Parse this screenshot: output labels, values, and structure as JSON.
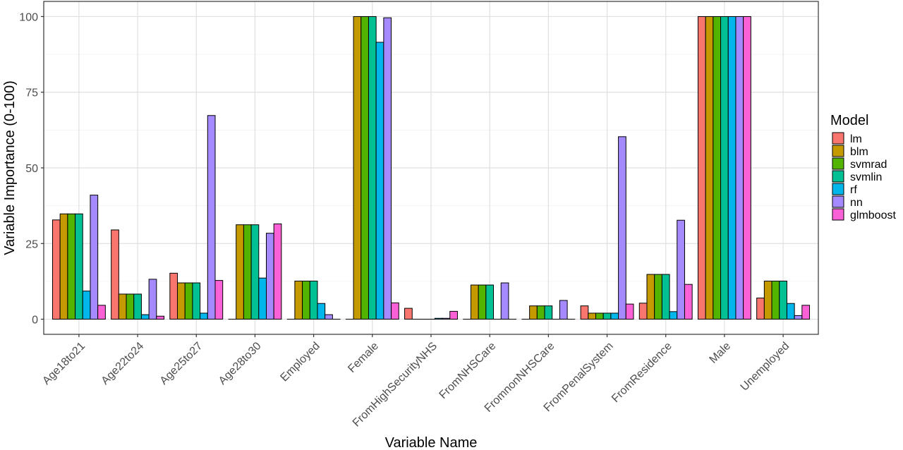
{
  "chart_data": {
    "type": "bar",
    "title": "",
    "xlabel": "Variable Name",
    "ylabel": "Variable Importance (0-100)",
    "ylim": [
      -5,
      105
    ],
    "yticks": [
      0,
      25,
      50,
      75,
      100
    ],
    "grid": true,
    "legend_title": "Model",
    "legend_position": "right",
    "categories": [
      "Age18to21",
      "Age22to24",
      "Age25to27",
      "Age28to30",
      "Employed",
      "Female",
      "FromHighSecurityNHS",
      "FromNHSCare",
      "FromnonNHSCare",
      "FromPenalSystem",
      "FromResidence",
      "Male",
      "Unemployed"
    ],
    "series": [
      {
        "name": "lm",
        "color": "#F8766D",
        "values": [
          32.8,
          29.5,
          15.2,
          0,
          0,
          0,
          3.6,
          0,
          0,
          4.4,
          5.3,
          100,
          7.0
        ]
      },
      {
        "name": "blm",
        "color": "#C49A00",
        "values": [
          34.8,
          8.3,
          12.0,
          31.2,
          12.6,
          100,
          0,
          11.3,
          4.4,
          2.0,
          14.8,
          100,
          12.6
        ]
      },
      {
        "name": "svmrad",
        "color": "#53B400",
        "values": [
          34.8,
          8.3,
          12.0,
          31.2,
          12.6,
          100,
          0,
          11.3,
          4.4,
          2.0,
          14.8,
          100,
          12.6
        ]
      },
      {
        "name": "svmlin",
        "color": "#00C094",
        "values": [
          34.8,
          8.3,
          12.0,
          31.2,
          12.6,
          100,
          0,
          11.3,
          4.4,
          2.0,
          14.8,
          100,
          12.6
        ]
      },
      {
        "name": "rf",
        "color": "#00B6EB",
        "values": [
          9.3,
          1.5,
          2.0,
          13.6,
          5.2,
          91.5,
          0.3,
          0,
          0,
          2.0,
          2.5,
          100,
          5.2
        ]
      },
      {
        "name": "nn",
        "color": "#A58AFF",
        "values": [
          41.0,
          13.2,
          67.3,
          28.4,
          1.5,
          99.6,
          0.3,
          12.0,
          6.2,
          60.3,
          32.7,
          100,
          1.2
        ]
      },
      {
        "name": "glmboost",
        "color": "#FB61D7",
        "values": [
          4.6,
          1.0,
          12.8,
          31.5,
          0,
          5.4,
          2.6,
          0,
          0,
          5.0,
          11.5,
          100,
          4.6
        ]
      }
    ]
  }
}
